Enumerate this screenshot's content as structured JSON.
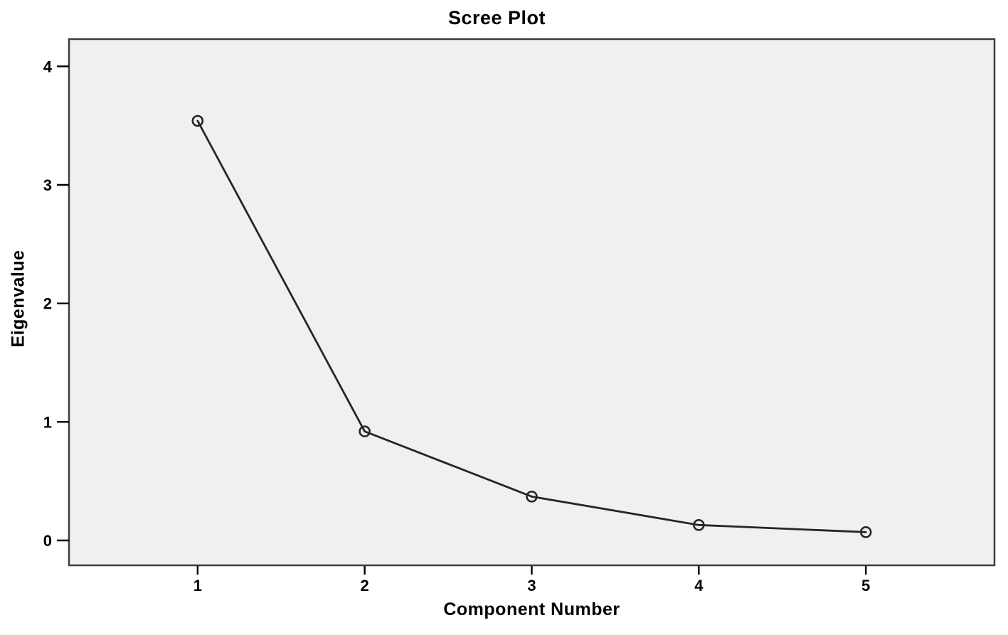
{
  "chart_data": {
    "type": "line",
    "title": "Scree Plot",
    "xlabel": "Component Number",
    "ylabel": "Eigenvalue",
    "x": [
      1,
      2,
      3,
      4,
      5
    ],
    "series": [
      {
        "name": "Eigenvalue",
        "values": [
          3.54,
          0.92,
          0.37,
          0.13,
          0.07
        ]
      }
    ],
    "x_ticks": [
      1,
      2,
      3,
      4,
      5
    ],
    "y_ticks": [
      0,
      1,
      2,
      3,
      4
    ],
    "xlim": [
      0.23,
      5.77
    ],
    "ylim": [
      -0.21,
      4.23
    ],
    "grid": false,
    "legend": "none",
    "marker": "open-circle",
    "colors": {
      "line": "#262626",
      "marker_stroke": "#262626",
      "plot_background": "#f0f0f0",
      "frame": "#3d3d3d",
      "tick": "#000000",
      "text": "#000000",
      "outer_background": "#ffffff"
    }
  }
}
